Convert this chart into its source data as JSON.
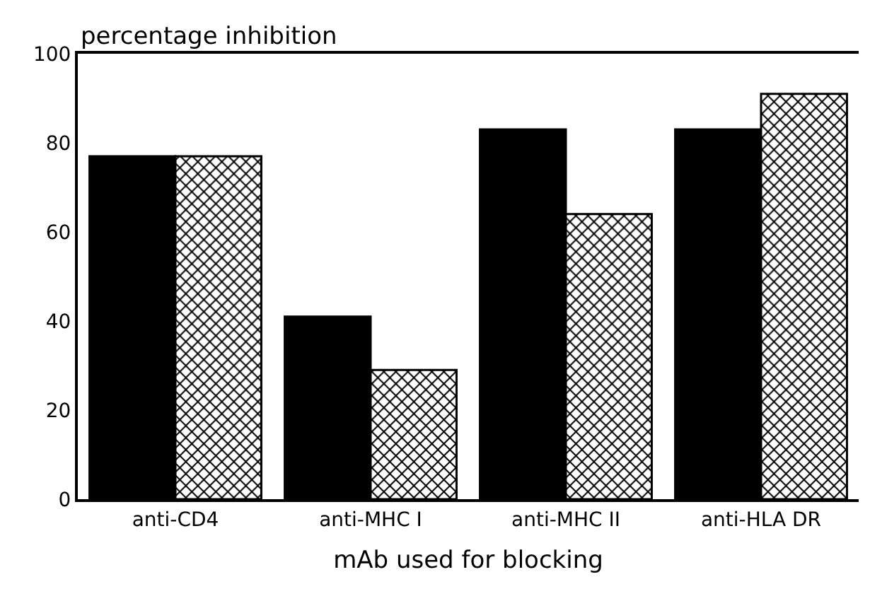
{
  "chart_data": {
    "type": "bar",
    "ylabel": "percentage inhibition",
    "xlabel": "mAb used for blocking",
    "categories": [
      "anti-CD4",
      "anti-MHC I",
      "anti-MHC II",
      "anti-HLA DR"
    ],
    "series": [
      {
        "color": "#000000",
        "values": [
          77,
          41,
          83,
          83
        ]
      },
      {
        "color": "#000000",
        "values": [
          77,
          29,
          64,
          91
        ]
      }
    ],
    "ylim": [
      0,
      100
    ],
    "yticks": [
      0,
      20,
      40,
      60,
      80,
      100
    ]
  }
}
